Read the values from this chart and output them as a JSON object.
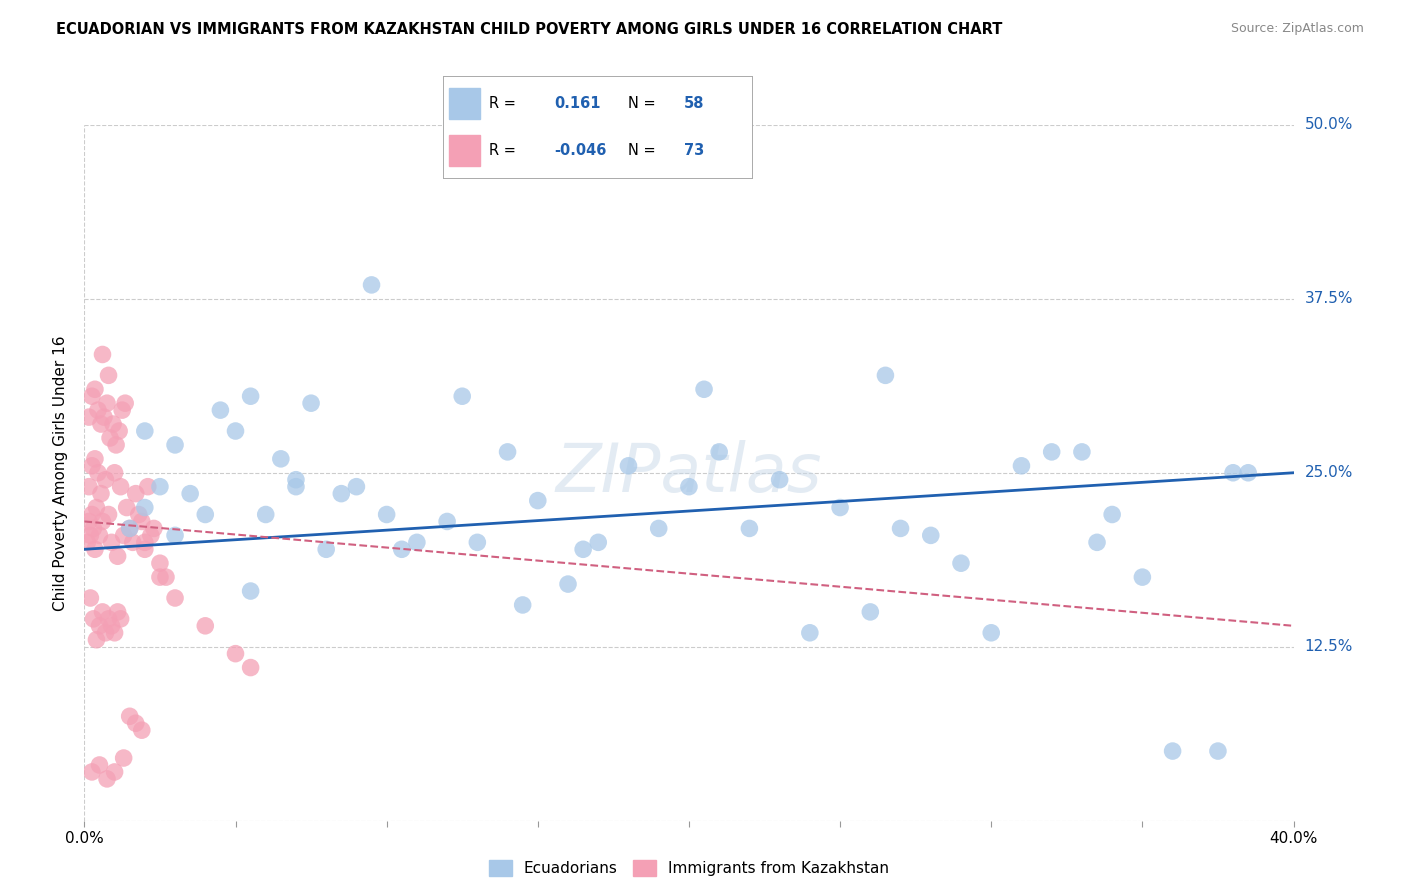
{
  "title": "ECUADORIAN VS IMMIGRANTS FROM KAZAKHSTAN CHILD POVERTY AMONG GIRLS UNDER 16 CORRELATION CHART",
  "source": "Source: ZipAtlas.com",
  "ylabel": "Child Poverty Among Girls Under 16",
  "xlim": [
    0.0,
    40.0
  ],
  "ylim": [
    0.0,
    50.0
  ],
  "yticks": [
    0.0,
    12.5,
    25.0,
    37.5,
    50.0
  ],
  "ytick_labels": [
    "",
    "12.5%",
    "25.0%",
    "37.5%",
    "50.0%"
  ],
  "legend_r_blue": "0.161",
  "legend_n_blue": "58",
  "legend_r_pink": "-0.046",
  "legend_n_pink": "73",
  "legend_label_blue": "Ecuadorians",
  "legend_label_pink": "Immigrants from Kazakhstan",
  "blue_color": "#a8c8e8",
  "pink_color": "#f4a0b5",
  "trendline_blue": "#2060b0",
  "trendline_pink": "#d06080",
  "trendline_pink_style": "--",
  "blue_trendline_x0": 0.0,
  "blue_trendline_y0": 19.5,
  "blue_trendline_x1": 40.0,
  "blue_trendline_y1": 25.0,
  "pink_trendline_x0": 0.0,
  "pink_trendline_y0": 21.5,
  "pink_trendline_x1": 40.0,
  "pink_trendline_y1": 14.0,
  "blue_scatter_x": [
    1.5,
    2.0,
    2.5,
    3.0,
    3.5,
    4.5,
    5.0,
    5.5,
    6.0,
    6.5,
    7.0,
    7.5,
    8.0,
    9.0,
    10.0,
    11.0,
    12.0,
    13.0,
    14.0,
    15.0,
    16.0,
    17.0,
    18.0,
    19.0,
    20.0,
    21.0,
    22.0,
    23.0,
    24.0,
    25.0,
    26.0,
    27.0,
    28.0,
    29.0,
    30.0,
    31.0,
    32.0,
    33.0,
    34.0,
    35.0,
    36.0,
    37.5,
    38.5,
    2.0,
    3.0,
    4.0,
    5.5,
    7.0,
    8.5,
    10.5,
    12.5,
    14.5,
    16.5,
    20.5,
    26.5,
    33.5,
    38.0,
    9.5
  ],
  "blue_scatter_y": [
    21.0,
    22.5,
    24.0,
    20.5,
    23.5,
    29.5,
    28.0,
    30.5,
    22.0,
    26.0,
    24.0,
    30.0,
    19.5,
    24.0,
    22.0,
    20.0,
    21.5,
    20.0,
    26.5,
    23.0,
    17.0,
    20.0,
    25.5,
    21.0,
    24.0,
    26.5,
    21.0,
    24.5,
    13.5,
    22.5,
    15.0,
    21.0,
    20.5,
    18.5,
    13.5,
    25.5,
    26.5,
    26.5,
    22.0,
    17.5,
    5.0,
    5.0,
    25.0,
    28.0,
    27.0,
    22.0,
    16.5,
    24.5,
    23.5,
    19.5,
    30.5,
    15.5,
    19.5,
    31.0,
    32.0,
    20.0,
    25.0,
    38.5
  ],
  "pink_scatter_x": [
    0.1,
    0.15,
    0.2,
    0.25,
    0.3,
    0.35,
    0.4,
    0.5,
    0.55,
    0.6,
    0.7,
    0.8,
    0.9,
    1.0,
    1.1,
    1.2,
    1.3,
    1.4,
    1.5,
    1.6,
    1.7,
    1.8,
    1.9,
    2.0,
    2.1,
    2.2,
    2.3,
    2.5,
    2.7,
    0.15,
    0.25,
    0.35,
    0.45,
    0.55,
    0.65,
    0.75,
    0.85,
    0.95,
    1.05,
    1.15,
    1.25,
    1.35,
    0.2,
    0.3,
    0.4,
    0.5,
    0.6,
    0.7,
    0.8,
    0.9,
    1.0,
    1.1,
    1.2,
    0.15,
    0.25,
    0.35,
    0.45,
    1.5,
    1.7,
    1.9,
    0.25,
    0.5,
    0.75,
    1.0,
    1.3,
    2.0,
    2.5,
    3.0,
    4.0,
    5.0,
    5.5,
    0.6,
    0.8
  ],
  "pink_scatter_y": [
    20.0,
    21.5,
    20.5,
    22.0,
    21.0,
    19.5,
    22.5,
    20.5,
    23.5,
    21.5,
    24.5,
    22.0,
    20.0,
    25.0,
    19.0,
    24.0,
    20.5,
    22.5,
    21.0,
    20.0,
    23.5,
    22.0,
    21.5,
    19.5,
    24.0,
    20.5,
    21.0,
    18.5,
    17.5,
    29.0,
    30.5,
    31.0,
    29.5,
    28.5,
    29.0,
    30.0,
    27.5,
    28.5,
    27.0,
    28.0,
    29.5,
    30.0,
    16.0,
    14.5,
    13.0,
    14.0,
    15.0,
    13.5,
    14.5,
    14.0,
    13.5,
    15.0,
    14.5,
    24.0,
    25.5,
    26.0,
    25.0,
    7.5,
    7.0,
    6.5,
    3.5,
    4.0,
    3.0,
    3.5,
    4.5,
    20.0,
    17.5,
    16.0,
    14.0,
    12.0,
    11.0,
    33.5,
    32.0
  ]
}
